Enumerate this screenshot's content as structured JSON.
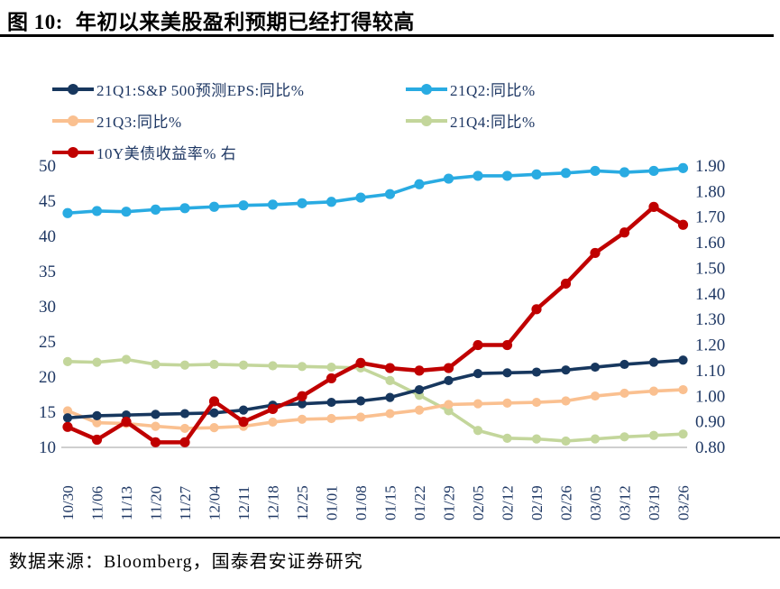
{
  "header": {
    "figure_label": "图 10:",
    "title": "年初以来美股盈利预期已经打得较高"
  },
  "footer": {
    "source": "数据来源：Bloomberg，国泰君安证券研究"
  },
  "colors": {
    "q1_navy": "#17375E",
    "q2_blue": "#29ABE2",
    "q3_orange": "#FAC090",
    "q4_green": "#C3D69B",
    "yield_red": "#C00000",
    "axis_text": "#1F3864",
    "baseline_gray": "#BFBFBF"
  },
  "chart_data": {
    "type": "line",
    "title": "年初以来美股盈利预期已经打得较高",
    "grid": false,
    "legend_position": "top-left",
    "categories": [
      "10/30",
      "11/06",
      "11/13",
      "11/20",
      "11/27",
      "12/04",
      "12/11",
      "12/18",
      "12/25",
      "01/01",
      "01/08",
      "01/15",
      "01/22",
      "01/29",
      "02/05",
      "02/12",
      "02/19",
      "02/26",
      "03/05",
      "03/12",
      "03/19",
      "03/26"
    ],
    "left_axis": {
      "min": 10,
      "max": 50,
      "ticks": [
        "10",
        "15",
        "20",
        "25",
        "30",
        "35",
        "40",
        "45",
        "50"
      ]
    },
    "right_axis": {
      "min": 0.8,
      "max": 1.9,
      "ticks": [
        "0.80",
        "0.90",
        "1.00",
        "1.10",
        "1.20",
        "1.30",
        "1.40",
        "1.50",
        "1.60",
        "1.70",
        "1.80",
        "1.90"
      ]
    },
    "series": [
      {
        "name": "21Q1:S&P 500预测EPS:同比%",
        "axis": "left",
        "color": "#17375E",
        "values": [
          14.2,
          14.5,
          14.6,
          14.7,
          14.8,
          14.9,
          15.3,
          16.0,
          16.2,
          16.4,
          16.6,
          17.1,
          18.2,
          19.5,
          20.5,
          20.6,
          20.7,
          21.0,
          21.4,
          21.8,
          22.1,
          22.4
        ]
      },
      {
        "name": "21Q2:同比%",
        "axis": "left",
        "color": "#29ABE2",
        "values": [
          43.3,
          43.6,
          43.5,
          43.8,
          44.0,
          44.2,
          44.4,
          44.5,
          44.7,
          44.9,
          45.5,
          46.0,
          47.4,
          48.2,
          48.6,
          48.6,
          48.8,
          49.0,
          49.3,
          49.1,
          49.3,
          49.7
        ]
      },
      {
        "name": "21Q3:同比%",
        "axis": "left",
        "color": "#FAC090",
        "values": [
          15.2,
          13.5,
          13.4,
          13.0,
          12.7,
          12.8,
          13.0,
          13.6,
          14.0,
          14.1,
          14.3,
          14.8,
          15.3,
          16.1,
          16.2,
          16.3,
          16.4,
          16.6,
          17.3,
          17.7,
          18.0,
          18.2
        ]
      },
      {
        "name": "21Q4:同比%",
        "axis": "left",
        "color": "#C3D69B",
        "values": [
          22.2,
          22.1,
          22.5,
          21.8,
          21.7,
          21.8,
          21.7,
          21.6,
          21.5,
          21.4,
          21.3,
          19.5,
          17.4,
          15.2,
          12.4,
          11.3,
          11.2,
          10.9,
          11.2,
          11.5,
          11.7,
          11.9
        ]
      },
      {
        "name": "10Y美债收益率% 右",
        "axis": "right",
        "color": "#C00000",
        "values": [
          0.88,
          0.83,
          0.9,
          0.82,
          0.82,
          0.98,
          0.9,
          0.95,
          1.0,
          1.07,
          1.13,
          1.11,
          1.1,
          1.11,
          1.2,
          1.2,
          1.34,
          1.44,
          1.56,
          1.64,
          1.74,
          1.67
        ]
      }
    ]
  }
}
